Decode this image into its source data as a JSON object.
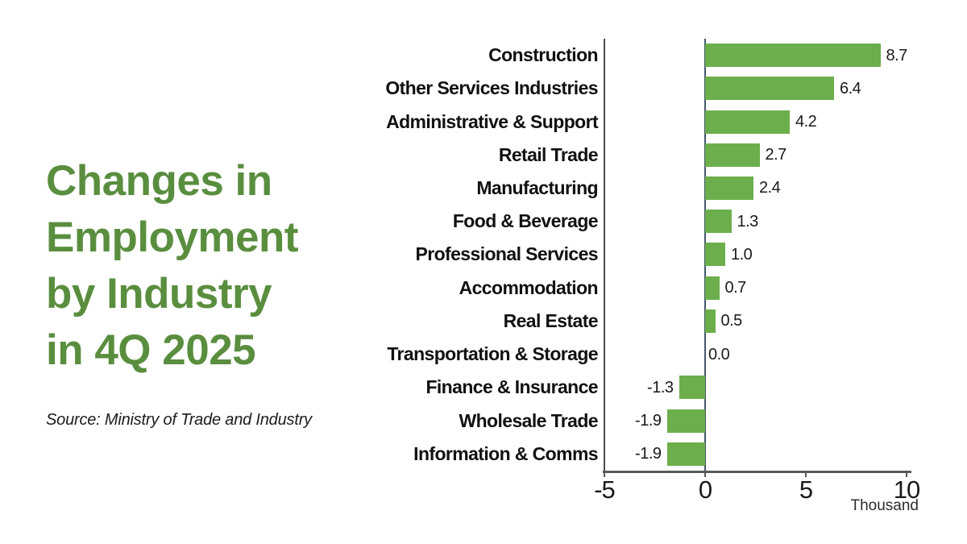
{
  "title_lines": [
    "Changes in",
    "Employment",
    "by Industry",
    "in 4Q 2025"
  ],
  "source_note": "Source: Ministry of Trade and Industry",
  "colors": {
    "title_green": "#5a8e3f",
    "bar_green": "#6cae4c",
    "zero_line": "#44586b",
    "left_spine": "#4b4b4b",
    "axis_line": "#58595b",
    "label_color": "#111111"
  },
  "chart_data": {
    "type": "bar",
    "orientation": "horizontal",
    "title": "Changes in Employment by Industry in 4Q 2025",
    "unit_label": "Thousand",
    "categories": [
      "Construction",
      "Other Services Industries",
      "Administrative & Support",
      "Retail Trade",
      "Manufacturing",
      "Food & Beverage",
      "Professional Services",
      "Accommodation",
      "Real Estate",
      "Transportation & Storage",
      "Finance & Insurance",
      "Wholesale Trade",
      "Information & Comms"
    ],
    "values": [
      8.7,
      6.4,
      4.2,
      2.7,
      2.4,
      1.3,
      1.0,
      0.7,
      0.5,
      0.0,
      -1.3,
      -1.9,
      -1.9
    ],
    "value_labels": [
      "8.7",
      "6.4",
      "4.2",
      "2.7",
      "2.4",
      "1.3",
      "1.0",
      "0.7",
      "0.5",
      "0.0",
      "-1.3",
      "-1.9",
      "-1.9"
    ],
    "xtick_labels": [
      "-5",
      "0",
      "5",
      "10"
    ],
    "xtick_values": [
      -5,
      0,
      5,
      10
    ],
    "xlim": [
      -5,
      10.2
    ],
    "grid": false,
    "legend": null
  }
}
